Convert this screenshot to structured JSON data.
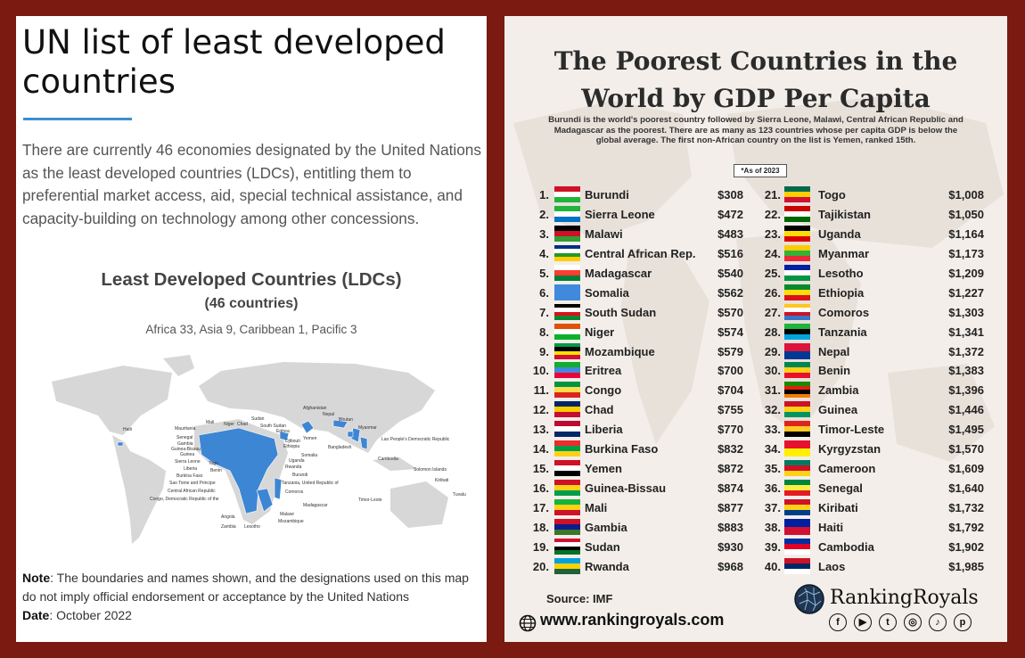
{
  "left": {
    "title": "UN list of least developed countries",
    "description": "There are currently 46 economies designated by the United Nations as the least developed countries (LDCs), entitling them to preferential market access, aid, special technical assistance, and capacity-building on technology among other concessions.",
    "map": {
      "title": "Least Developed Countries (LDCs)",
      "subtitle": "(46 countries)",
      "regions": "Africa 33, Asia 9, Caribbean 1, Pacific 3",
      "labels": [
        "Haiti",
        "Mauritania",
        "Senegal",
        "Gambia",
        "Guinea-Bissau",
        "Guinea",
        "Sierra Leone",
        "Liberia",
        "Burkina Faso",
        "Sao Tome and Principe",
        "Central African Republic",
        "Congo, Democratic Republic of the",
        "Mali",
        "Niger",
        "Chad",
        "Sudan",
        "South Sudan",
        "Eritrea",
        "Djibouti",
        "Ethiopia",
        "Somalia",
        "Uganda",
        "Rwanda",
        "Burundi",
        "Tanzania, United Republic of",
        "Comoros",
        "Madagascar",
        "Malawi",
        "Mozambique",
        "Zambia",
        "Lesotho",
        "Angola",
        "Togo",
        "Benin",
        "Yemen",
        "Afghanistan",
        "Nepal",
        "Bhutan",
        "Bangladesh",
        "Myanmar",
        "Lao People's Democratic Republic",
        "Cambodia",
        "Timor-Leste",
        "Solomon Islands",
        "Kiribati",
        "Tuvalu"
      ]
    },
    "note_label": "Note",
    "note_text": ": The boundaries and names shown, and the designations used on this map do not imply official endorsement or acceptance by the United Nations",
    "date_label": "Date",
    "date_text": ": October 2022"
  },
  "right": {
    "title_line1": "The Poorest Countries in the",
    "title_line2": "World by GDP Per Capita",
    "description": "Burundi is the world's poorest country followed by Sierra Leone, Malawi, Central African Republic and Madagascar as the poorest. There are as many as 123 countries whose per capita GDP is below the global average. The first non-African country on the list is Yemen, ranked 15th.",
    "as_of": "*As of 2023",
    "rankings": [
      {
        "rank": "1.",
        "country": "Burundi",
        "gdp": "$308",
        "flag": [
          "#ce1126",
          "#ffffff",
          "#1eb53a"
        ]
      },
      {
        "rank": "2.",
        "country": "Sierra Leone",
        "gdp": "$472",
        "flag": [
          "#1eb53a",
          "#ffffff",
          "#0072c6"
        ]
      },
      {
        "rank": "3.",
        "country": "Malawi",
        "gdp": "$483",
        "flag": [
          "#000000",
          "#ce1126",
          "#339e35"
        ]
      },
      {
        "rank": "4.",
        "country": "Central African Rep.",
        "gdp": "$516",
        "flag": [
          "#003082",
          "#ffffff",
          "#289728",
          "#ffce00"
        ]
      },
      {
        "rank": "5.",
        "country": "Madagascar",
        "gdp": "$540",
        "flag": [
          "#ffffff",
          "#fc3d32",
          "#007e3a"
        ]
      },
      {
        "rank": "6.",
        "country": "Somalia",
        "gdp": "$562",
        "flag": [
          "#4189dd"
        ]
      },
      {
        "rank": "7.",
        "country": "South Sudan",
        "gdp": "$570",
        "flag": [
          "#000000",
          "#ffffff",
          "#da121a",
          "#078930"
        ]
      },
      {
        "rank": "8.",
        "country": "Niger",
        "gdp": "$574",
        "flag": [
          "#e05206",
          "#ffffff",
          "#0db02b"
        ]
      },
      {
        "rank": "9.",
        "country": "Mozambique",
        "gdp": "$579",
        "flag": [
          "#009a44",
          "#000000",
          "#fce100",
          "#d21034"
        ]
      },
      {
        "rank": "10.",
        "country": "Eritrea",
        "gdp": "$700",
        "flag": [
          "#12ad2b",
          "#4189dd",
          "#ea0437"
        ]
      },
      {
        "rank": "11.",
        "country": "Congo",
        "gdp": "$704",
        "flag": [
          "#009543",
          "#fbde4a",
          "#dc241f"
        ]
      },
      {
        "rank": "12.",
        "country": "Chad",
        "gdp": "$755",
        "flag": [
          "#002664",
          "#fecb00",
          "#c60c30"
        ]
      },
      {
        "rank": "13.",
        "country": "Liberia",
        "gdp": "$770",
        "flag": [
          "#bf0a30",
          "#ffffff",
          "#002868"
        ]
      },
      {
        "rank": "14.",
        "country": "Burkina Faso",
        "gdp": "$832",
        "flag": [
          "#ef2b2d",
          "#009e49",
          "#fcd116"
        ]
      },
      {
        "rank": "15.",
        "country": "Yemen",
        "gdp": "$872",
        "flag": [
          "#ce1126",
          "#ffffff",
          "#000000"
        ]
      },
      {
        "rank": "16.",
        "country": "Guinea-Bissau",
        "gdp": "$874",
        "flag": [
          "#ce1126",
          "#fcd116",
          "#009e49"
        ]
      },
      {
        "rank": "17.",
        "country": "Mali",
        "gdp": "$877",
        "flag": [
          "#14b53a",
          "#fcd116",
          "#ce1126"
        ]
      },
      {
        "rank": "18.",
        "country": "Gambia",
        "gdp": "$883",
        "flag": [
          "#ce1126",
          "#0c1c8c",
          "#3a7728"
        ]
      },
      {
        "rank": "19.",
        "country": "Sudan",
        "gdp": "$930",
        "flag": [
          "#d21034",
          "#ffffff",
          "#000000",
          "#007229"
        ]
      },
      {
        "rank": "20.",
        "country": "Rwanda",
        "gdp": "$968",
        "flag": [
          "#00a1de",
          "#fad201",
          "#20603d"
        ]
      },
      {
        "rank": "21.",
        "country": "Togo",
        "gdp": "$1,008",
        "flag": [
          "#006a4e",
          "#ffce00",
          "#d21034"
        ]
      },
      {
        "rank": "22.",
        "country": "Tajikistan",
        "gdp": "$1,050",
        "flag": [
          "#cc0000",
          "#ffffff",
          "#006600"
        ]
      },
      {
        "rank": "23.",
        "country": "Uganda",
        "gdp": "$1,164",
        "flag": [
          "#000000",
          "#fcdc04",
          "#d90000"
        ]
      },
      {
        "rank": "24.",
        "country": "Myanmar",
        "gdp": "$1,173",
        "flag": [
          "#fecb00",
          "#34b233",
          "#ea2839"
        ]
      },
      {
        "rank": "25.",
        "country": "Lesotho",
        "gdp": "$1,209",
        "flag": [
          "#00209f",
          "#ffffff",
          "#009543"
        ]
      },
      {
        "rank": "26.",
        "country": "Ethiopia",
        "gdp": "$1,227",
        "flag": [
          "#078930",
          "#fcdd09",
          "#da121a"
        ]
      },
      {
        "rank": "27.",
        "country": "Comoros",
        "gdp": "$1,303",
        "flag": [
          "#ffc61e",
          "#ffffff",
          "#ce1126",
          "#3a75c4"
        ]
      },
      {
        "rank": "28.",
        "country": "Tanzania",
        "gdp": "$1,341",
        "flag": [
          "#1eb53a",
          "#000000",
          "#00a3dd"
        ]
      },
      {
        "rank": "29.",
        "country": "Nepal",
        "gdp": "$1,372",
        "flag": [
          "#dc143c",
          "#003893"
        ]
      },
      {
        "rank": "30.",
        "country": "Benin",
        "gdp": "$1,383",
        "flag": [
          "#008751",
          "#fcd116",
          "#e8112d"
        ]
      },
      {
        "rank": "31.",
        "country": "Zambia",
        "gdp": "$1,396",
        "flag": [
          "#198a00",
          "#de2010",
          "#000000",
          "#ef7d00"
        ]
      },
      {
        "rank": "32.",
        "country": "Guinea",
        "gdp": "$1,446",
        "flag": [
          "#ce1126",
          "#fcd116",
          "#009460"
        ]
      },
      {
        "rank": "33.",
        "country": "Timor-Leste",
        "gdp": "$1,495",
        "flag": [
          "#dc241f",
          "#ffc726",
          "#000000"
        ]
      },
      {
        "rank": "34.",
        "country": "Kyrgyzstan",
        "gdp": "$1,570",
        "flag": [
          "#e8112d",
          "#ffef00"
        ]
      },
      {
        "rank": "35.",
        "country": "Cameroon",
        "gdp": "$1,609",
        "flag": [
          "#007a5e",
          "#ce1126",
          "#fcd116"
        ]
      },
      {
        "rank": "36.",
        "country": "Senegal",
        "gdp": "$1,640",
        "flag": [
          "#00853f",
          "#fdef42",
          "#e31b23"
        ]
      },
      {
        "rank": "37.",
        "country": "Kiribati",
        "gdp": "$1,732",
        "flag": [
          "#ce1126",
          "#fcd116",
          "#003f87"
        ]
      },
      {
        "rank": "38.",
        "country": "Haiti",
        "gdp": "$1,792",
        "flag": [
          "#00209f",
          "#d21034"
        ]
      },
      {
        "rank": "39.",
        "country": "Cambodia",
        "gdp": "$1,902",
        "flag": [
          "#032ea1",
          "#e00025",
          "#ffffff"
        ]
      },
      {
        "rank": "40.",
        "country": "Laos",
        "gdp": "$1,985",
        "flag": [
          "#ce1126",
          "#002868",
          "#ffffff"
        ]
      }
    ],
    "source": "Source: IMF",
    "website": "www.rankingroyals.com",
    "brand": "RankingRoyals",
    "social": [
      {
        "icon": "facebook-icon",
        "glyph": "f"
      },
      {
        "icon": "youtube-icon",
        "glyph": "▶"
      },
      {
        "icon": "twitter-icon",
        "glyph": "t"
      },
      {
        "icon": "instagram-icon",
        "glyph": "◎"
      },
      {
        "icon": "tiktok-icon",
        "glyph": "♪"
      },
      {
        "icon": "pinterest-icon",
        "glyph": "p"
      }
    ]
  }
}
